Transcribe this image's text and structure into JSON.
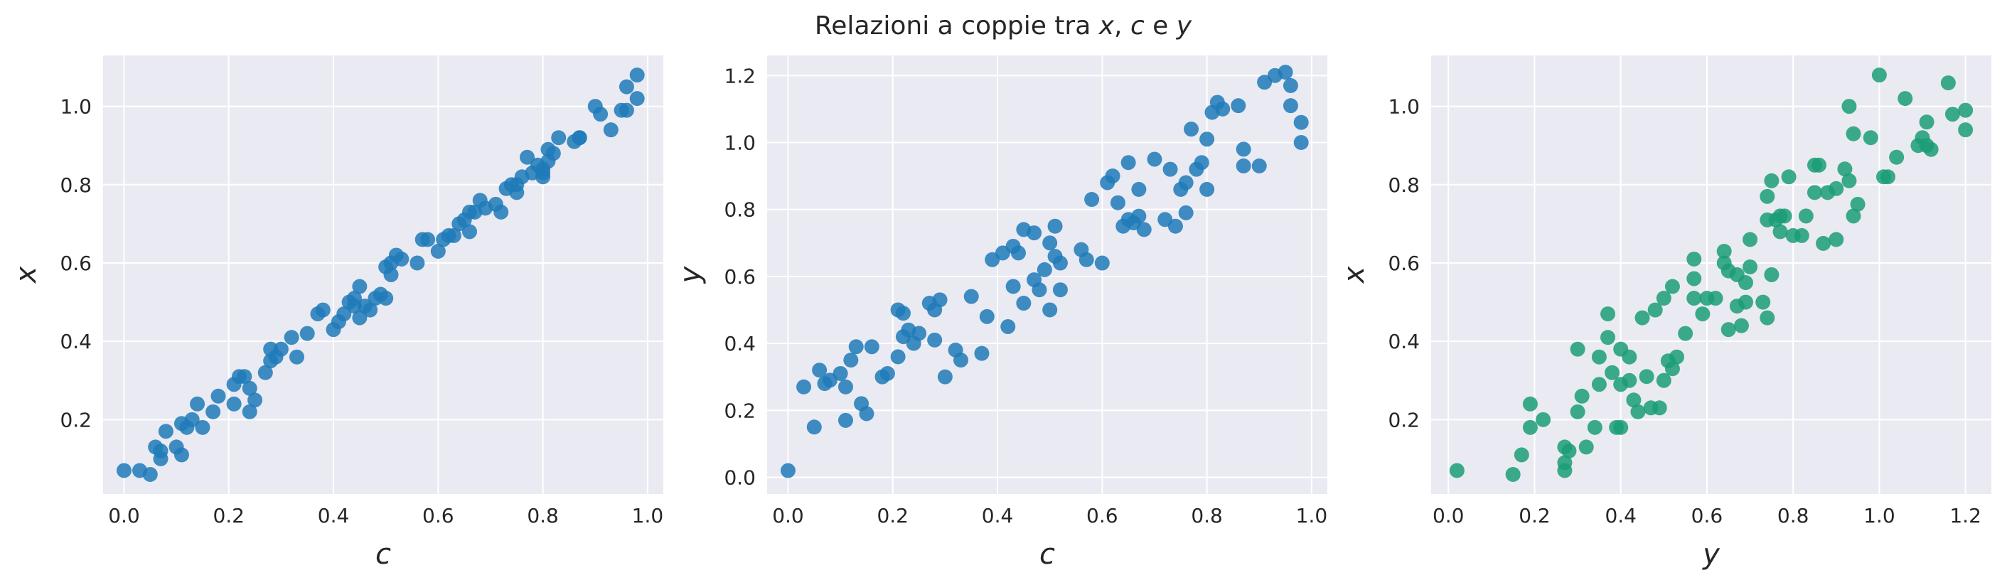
{
  "title": {
    "parts": [
      {
        "text": "Relazioni a coppie tra ",
        "italic": false
      },
      {
        "text": "x",
        "italic": true
      },
      {
        "text": ", ",
        "italic": false
      },
      {
        "text": "c",
        "italic": true
      },
      {
        "text": " e ",
        "italic": false
      },
      {
        "text": "y",
        "italic": true
      }
    ]
  },
  "colors": {
    "background": "#eaeaf2",
    "grid": "#ffffff",
    "series_blue": "#1f7ab8",
    "series_green": "#1b9e77"
  },
  "chart_data": [
    {
      "type": "scatter",
      "xlabel": "c",
      "ylabel": "x",
      "xlim": [
        -0.04,
        1.03
      ],
      "ylim": [
        0.01,
        1.13
      ],
      "xticks": [
        0.0,
        0.2,
        0.4,
        0.6,
        0.8,
        1.0
      ],
      "xtick_labels": [
        "0.0",
        "0.2",
        "0.4",
        "0.6",
        "0.8",
        "1.0"
      ],
      "yticks": [
        0.2,
        0.4,
        0.6,
        0.8,
        1.0
      ],
      "ytick_labels": [
        "0.2",
        "0.4",
        "0.6",
        "0.8",
        "1.0"
      ],
      "grid": true,
      "color": "#1f7ab8",
      "points": [
        [
          0.0,
          0.07
        ],
        [
          0.03,
          0.07
        ],
        [
          0.05,
          0.06
        ],
        [
          0.06,
          0.13
        ],
        [
          0.07,
          0.1
        ],
        [
          0.07,
          0.12
        ],
        [
          0.08,
          0.17
        ],
        [
          0.1,
          0.13
        ],
        [
          0.11,
          0.11
        ],
        [
          0.11,
          0.19
        ],
        [
          0.12,
          0.18
        ],
        [
          0.13,
          0.2
        ],
        [
          0.14,
          0.24
        ],
        [
          0.15,
          0.18
        ],
        [
          0.17,
          0.22
        ],
        [
          0.18,
          0.26
        ],
        [
          0.21,
          0.24
        ],
        [
          0.21,
          0.29
        ],
        [
          0.22,
          0.31
        ],
        [
          0.23,
          0.31
        ],
        [
          0.24,
          0.28
        ],
        [
          0.24,
          0.22
        ],
        [
          0.25,
          0.25
        ],
        [
          0.27,
          0.32
        ],
        [
          0.28,
          0.35
        ],
        [
          0.28,
          0.38
        ],
        [
          0.29,
          0.36
        ],
        [
          0.3,
          0.38
        ],
        [
          0.32,
          0.41
        ],
        [
          0.33,
          0.36
        ],
        [
          0.35,
          0.42
        ],
        [
          0.37,
          0.47
        ],
        [
          0.38,
          0.48
        ],
        [
          0.4,
          0.43
        ],
        [
          0.41,
          0.45
        ],
        [
          0.42,
          0.47
        ],
        [
          0.43,
          0.5
        ],
        [
          0.44,
          0.51
        ],
        [
          0.44,
          0.49
        ],
        [
          0.45,
          0.46
        ],
        [
          0.45,
          0.54
        ],
        [
          0.46,
          0.49
        ],
        [
          0.47,
          0.48
        ],
        [
          0.48,
          0.51
        ],
        [
          0.49,
          0.52
        ],
        [
          0.5,
          0.51
        ],
        [
          0.5,
          0.59
        ],
        [
          0.51,
          0.57
        ],
        [
          0.51,
          0.6
        ],
        [
          0.52,
          0.62
        ],
        [
          0.53,
          0.61
        ],
        [
          0.56,
          0.6
        ],
        [
          0.57,
          0.66
        ],
        [
          0.58,
          0.66
        ],
        [
          0.6,
          0.63
        ],
        [
          0.61,
          0.66
        ],
        [
          0.62,
          0.67
        ],
        [
          0.63,
          0.67
        ],
        [
          0.64,
          0.7
        ],
        [
          0.65,
          0.71
        ],
        [
          0.66,
          0.68
        ],
        [
          0.66,
          0.73
        ],
        [
          0.67,
          0.73
        ],
        [
          0.68,
          0.76
        ],
        [
          0.69,
          0.74
        ],
        [
          0.71,
          0.75
        ],
        [
          0.72,
          0.73
        ],
        [
          0.73,
          0.79
        ],
        [
          0.74,
          0.8
        ],
        [
          0.75,
          0.78
        ],
        [
          0.75,
          0.8
        ],
        [
          0.76,
          0.82
        ],
        [
          0.77,
          0.87
        ],
        [
          0.78,
          0.83
        ],
        [
          0.79,
          0.85
        ],
        [
          0.8,
          0.82
        ],
        [
          0.8,
          0.83
        ],
        [
          0.8,
          0.84
        ],
        [
          0.81,
          0.86
        ],
        [
          0.81,
          0.89
        ],
        [
          0.82,
          0.88
        ],
        [
          0.83,
          0.92
        ],
        [
          0.86,
          0.91
        ],
        [
          0.87,
          0.92
        ],
        [
          0.87,
          0.92
        ],
        [
          0.9,
          1.0
        ],
        [
          0.91,
          0.98
        ],
        [
          0.93,
          0.94
        ],
        [
          0.95,
          0.99
        ],
        [
          0.96,
          0.99
        ],
        [
          0.96,
          1.05
        ],
        [
          0.98,
          1.08
        ],
        [
          0.98,
          1.02
        ]
      ]
    },
    {
      "type": "scatter",
      "xlabel": "c",
      "ylabel": "y",
      "xlim": [
        -0.04,
        1.03
      ],
      "ylim": [
        -0.05,
        1.26
      ],
      "xticks": [
        0.0,
        0.2,
        0.4,
        0.6,
        0.8,
        1.0
      ],
      "xtick_labels": [
        "0.0",
        "0.2",
        "0.4",
        "0.6",
        "0.8",
        "1.0"
      ],
      "yticks": [
        0.0,
        0.2,
        0.4,
        0.6,
        0.8,
        1.0,
        1.2
      ],
      "ytick_labels": [
        "0.0",
        "0.2",
        "0.4",
        "0.6",
        "0.8",
        "1.0",
        "1.2"
      ],
      "grid": true,
      "color": "#1f7ab8",
      "points": [
        [
          0.0,
          0.02
        ],
        [
          0.03,
          0.27
        ],
        [
          0.05,
          0.15
        ],
        [
          0.06,
          0.32
        ],
        [
          0.07,
          0.28
        ],
        [
          0.08,
          0.29
        ],
        [
          0.1,
          0.31
        ],
        [
          0.11,
          0.27
        ],
        [
          0.11,
          0.17
        ],
        [
          0.12,
          0.35
        ],
        [
          0.13,
          0.39
        ],
        [
          0.14,
          0.22
        ],
        [
          0.15,
          0.19
        ],
        [
          0.16,
          0.39
        ],
        [
          0.18,
          0.3
        ],
        [
          0.19,
          0.31
        ],
        [
          0.21,
          0.5
        ],
        [
          0.21,
          0.36
        ],
        [
          0.22,
          0.42
        ],
        [
          0.23,
          0.44
        ],
        [
          0.24,
          0.4
        ],
        [
          0.22,
          0.49
        ],
        [
          0.25,
          0.43
        ],
        [
          0.27,
          0.52
        ],
        [
          0.28,
          0.41
        ],
        [
          0.28,
          0.5
        ],
        [
          0.29,
          0.53
        ],
        [
          0.3,
          0.3
        ],
        [
          0.32,
          0.38
        ],
        [
          0.33,
          0.35
        ],
        [
          0.35,
          0.54
        ],
        [
          0.37,
          0.37
        ],
        [
          0.38,
          0.48
        ],
        [
          0.39,
          0.65
        ],
        [
          0.41,
          0.67
        ],
        [
          0.42,
          0.45
        ],
        [
          0.43,
          0.69
        ],
        [
          0.43,
          0.57
        ],
        [
          0.44,
          0.67
        ],
        [
          0.45,
          0.52
        ],
        [
          0.45,
          0.74
        ],
        [
          0.47,
          0.59
        ],
        [
          0.47,
          0.73
        ],
        [
          0.48,
          0.56
        ],
        [
          0.49,
          0.62
        ],
        [
          0.5,
          0.5
        ],
        [
          0.5,
          0.7
        ],
        [
          0.51,
          0.66
        ],
        [
          0.51,
          0.75
        ],
        [
          0.52,
          0.56
        ],
        [
          0.52,
          0.64
        ],
        [
          0.56,
          0.68
        ],
        [
          0.57,
          0.65
        ],
        [
          0.58,
          0.83
        ],
        [
          0.6,
          0.64
        ],
        [
          0.61,
          0.88
        ],
        [
          0.62,
          0.9
        ],
        [
          0.63,
          0.82
        ],
        [
          0.64,
          0.75
        ],
        [
          0.65,
          0.77
        ],
        [
          0.65,
          0.94
        ],
        [
          0.66,
          0.76
        ],
        [
          0.67,
          0.78
        ],
        [
          0.67,
          0.86
        ],
        [
          0.68,
          0.74
        ],
        [
          0.7,
          0.95
        ],
        [
          0.72,
          0.77
        ],
        [
          0.73,
          0.92
        ],
        [
          0.74,
          0.75
        ],
        [
          0.75,
          0.86
        ],
        [
          0.76,
          0.88
        ],
        [
          0.76,
          0.79
        ],
        [
          0.77,
          1.04
        ],
        [
          0.78,
          0.92
        ],
        [
          0.79,
          0.94
        ],
        [
          0.8,
          1.01
        ],
        [
          0.8,
          0.86
        ],
        [
          0.81,
          1.09
        ],
        [
          0.82,
          1.12
        ],
        [
          0.83,
          1.1
        ],
        [
          0.86,
          1.11
        ],
        [
          0.87,
          0.98
        ],
        [
          0.87,
          0.93
        ],
        [
          0.9,
          0.93
        ],
        [
          0.91,
          1.18
        ],
        [
          0.93,
          1.2
        ],
        [
          0.95,
          1.21
        ],
        [
          0.96,
          1.17
        ],
        [
          0.96,
          1.11
        ],
        [
          0.98,
          1.0
        ],
        [
          0.98,
          1.06
        ]
      ]
    },
    {
      "type": "scatter",
      "xlabel": "y",
      "ylabel": "x",
      "xlim": [
        -0.04,
        1.26
      ],
      "ylim": [
        0.01,
        1.13
      ],
      "xticks": [
        0.0,
        0.2,
        0.4,
        0.6,
        0.8,
        1.0,
        1.2
      ],
      "xtick_labels": [
        "0.0",
        "0.2",
        "0.4",
        "0.6",
        "0.8",
        "1.0",
        "1.2"
      ],
      "yticks": [
        0.2,
        0.4,
        0.6,
        0.8,
        1.0
      ],
      "ytick_labels": [
        "0.2",
        "0.4",
        "0.6",
        "0.8",
        "1.0"
      ],
      "grid": true,
      "color": "#1b9e77",
      "points": [
        [
          0.02,
          0.07
        ],
        [
          0.15,
          0.06
        ],
        [
          0.17,
          0.11
        ],
        [
          0.19,
          0.18
        ],
        [
          0.19,
          0.24
        ],
        [
          0.22,
          0.2
        ],
        [
          0.27,
          0.13
        ],
        [
          0.27,
          0.07
        ],
        [
          0.28,
          0.12
        ],
        [
          0.27,
          0.09
        ],
        [
          0.3,
          0.38
        ],
        [
          0.3,
          0.22
        ],
        [
          0.31,
          0.26
        ],
        [
          0.32,
          0.13
        ],
        [
          0.34,
          0.18
        ],
        [
          0.35,
          0.29
        ],
        [
          0.35,
          0.36
        ],
        [
          0.37,
          0.41
        ],
        [
          0.37,
          0.47
        ],
        [
          0.38,
          0.32
        ],
        [
          0.39,
          0.18
        ],
        [
          0.4,
          0.38
        ],
        [
          0.4,
          0.18
        ],
        [
          0.4,
          0.29
        ],
        [
          0.42,
          0.36
        ],
        [
          0.42,
          0.3
        ],
        [
          0.43,
          0.25
        ],
        [
          0.44,
          0.22
        ],
        [
          0.45,
          0.46
        ],
        [
          0.46,
          0.31
        ],
        [
          0.47,
          0.23
        ],
        [
          0.48,
          0.48
        ],
        [
          0.49,
          0.23
        ],
        [
          0.5,
          0.3
        ],
        [
          0.5,
          0.51
        ],
        [
          0.51,
          0.35
        ],
        [
          0.52,
          0.33
        ],
        [
          0.52,
          0.54
        ],
        [
          0.53,
          0.36
        ],
        [
          0.55,
          0.42
        ],
        [
          0.57,
          0.51
        ],
        [
          0.57,
          0.56
        ],
        [
          0.57,
          0.61
        ],
        [
          0.59,
          0.47
        ],
        [
          0.6,
          0.51
        ],
        [
          0.62,
          0.51
        ],
        [
          0.64,
          0.63
        ],
        [
          0.64,
          0.6
        ],
        [
          0.65,
          0.43
        ],
        [
          0.65,
          0.58
        ],
        [
          0.67,
          0.49
        ],
        [
          0.67,
          0.57
        ],
        [
          0.68,
          0.44
        ],
        [
          0.69,
          0.5
        ],
        [
          0.69,
          0.55
        ],
        [
          0.7,
          0.59
        ],
        [
          0.7,
          0.66
        ],
        [
          0.73,
          0.5
        ],
        [
          0.74,
          0.46
        ],
        [
          0.74,
          0.77
        ],
        [
          0.74,
          0.71
        ],
        [
          0.75,
          0.57
        ],
        [
          0.75,
          0.81
        ],
        [
          0.76,
          0.71
        ],
        [
          0.77,
          0.68
        ],
        [
          0.77,
          0.72
        ],
        [
          0.78,
          0.72
        ],
        [
          0.79,
          0.82
        ],
        [
          0.8,
          0.67
        ],
        [
          0.82,
          0.67
        ],
        [
          0.83,
          0.72
        ],
        [
          0.85,
          0.85
        ],
        [
          0.85,
          0.78
        ],
        [
          0.86,
          0.85
        ],
        [
          0.87,
          0.65
        ],
        [
          0.88,
          0.78
        ],
        [
          0.9,
          0.66
        ],
        [
          0.9,
          0.79
        ],
        [
          0.92,
          0.84
        ],
        [
          0.93,
          0.81
        ],
        [
          0.93,
          1.0
        ],
        [
          0.94,
          0.93
        ],
        [
          0.94,
          0.72
        ],
        [
          0.95,
          0.75
        ],
        [
          0.98,
          0.92
        ],
        [
          1.0,
          1.08
        ],
        [
          1.01,
          0.82
        ],
        [
          1.02,
          0.82
        ],
        [
          1.04,
          0.87
        ],
        [
          1.06,
          1.02
        ],
        [
          1.09,
          0.9
        ],
        [
          1.1,
          0.92
        ],
        [
          1.11,
          0.96
        ],
        [
          1.11,
          0.9
        ],
        [
          1.12,
          0.89
        ],
        [
          1.16,
          1.06
        ],
        [
          1.17,
          0.98
        ],
        [
          1.2,
          0.94
        ],
        [
          1.2,
          0.99
        ]
      ]
    }
  ]
}
